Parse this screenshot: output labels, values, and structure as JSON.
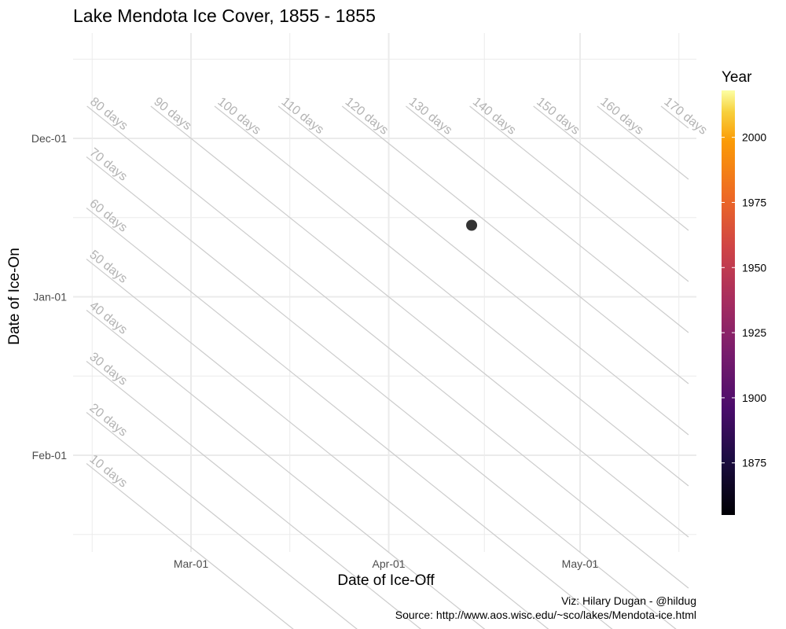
{
  "chart_data": {
    "type": "scatter",
    "title": "Lake Mendota Ice Cover, 1855 - 1855",
    "xlabel": "Date of Ice-Off",
    "ylabel": "Date of Ice-On",
    "x_ticks": [
      "Mar-01",
      "Apr-01",
      "May-01"
    ],
    "y_ticks": [
      "Dec-01",
      "Jan-01",
      "Feb-01"
    ],
    "points": [
      {
        "ice_off": "Apr-14",
        "ice_on": "Dec-18",
        "year": 1855
      }
    ],
    "duration_lines": [
      {
        "days": 10,
        "label": "10 days"
      },
      {
        "days": 20,
        "label": "20 days"
      },
      {
        "days": 30,
        "label": "30 days"
      },
      {
        "days": 40,
        "label": "40 days"
      },
      {
        "days": 50,
        "label": "50 days"
      },
      {
        "days": 60,
        "label": "60 days"
      },
      {
        "days": 70,
        "label": "70 days"
      },
      {
        "days": 80,
        "label": "80 days"
      },
      {
        "days": 90,
        "label": "90 days"
      },
      {
        "days": 100,
        "label": "100 days"
      },
      {
        "days": 110,
        "label": "110 days"
      },
      {
        "days": 120,
        "label": "120 days"
      },
      {
        "days": 130,
        "label": "130 days"
      },
      {
        "days": 140,
        "label": "140 days"
      },
      {
        "days": 150,
        "label": "150 days"
      },
      {
        "days": 160,
        "label": "160 days"
      },
      {
        "days": 170,
        "label": "170 days"
      }
    ],
    "legend": {
      "title": "Year",
      "ticks": [
        1875,
        1900,
        1925,
        1950,
        1975,
        2000
      ],
      "range": [
        1855,
        2018
      ],
      "colormap": "inferno",
      "position": "right"
    },
    "point_color": "#333333",
    "grid": true
  },
  "caption": {
    "line1": "Viz: Hilary Dugan - @hildug",
    "line2": "Source: http://www.aos.wisc.edu/~sco/lakes/Mendota-ice.html"
  }
}
